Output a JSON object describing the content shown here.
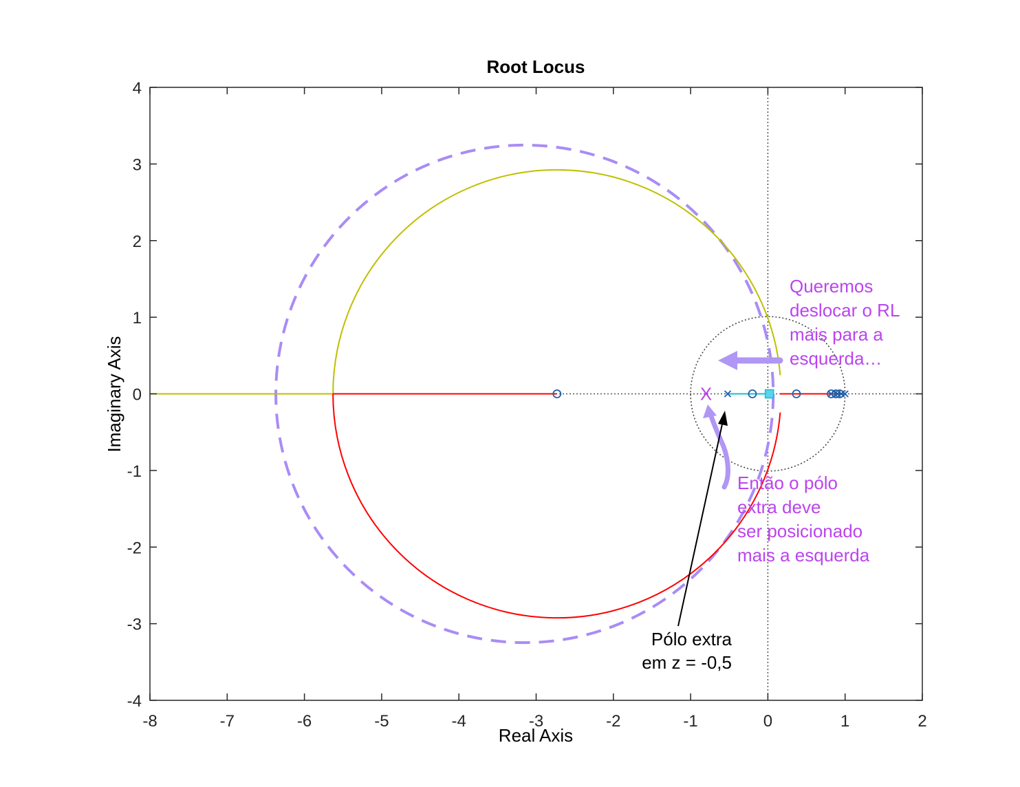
{
  "chart_data": {
    "type": "line",
    "title": "Root Locus",
    "xlabel": "Real Axis",
    "ylabel": "Imaginary Axis",
    "xlim": [
      -8,
      2
    ],
    "ylim": [
      -4,
      4
    ],
    "xticks": [
      "-8",
      "-7",
      "-6",
      "-5",
      "-4",
      "-3",
      "-2",
      "-1",
      "0",
      "1",
      "2"
    ],
    "yticks": [
      "4",
      "3",
      "2",
      "1",
      "0",
      "-1",
      "-2",
      "-3",
      "-4"
    ],
    "grid": false,
    "unit_circle": {
      "center": [
        0,
        0
      ],
      "radius": 1
    },
    "reference_circle": {
      "center": [
        -3.15,
        0
      ],
      "radius": 3.22
    },
    "locus_circle": {
      "center": [
        -2.73,
        0
      ],
      "radius": 2.9
    },
    "series": [
      {
        "color": "#bfbf00",
        "points": [
          [
            -8,
            0
          ],
          [
            -5.66,
            0
          ],
          [
            -5.6,
            1.0
          ],
          [
            -5.3,
            1.55
          ],
          [
            -4.9,
            2.05
          ],
          [
            -4.45,
            2.35
          ],
          [
            -3.9,
            2.68
          ],
          [
            -3.5,
            2.8
          ],
          [
            -2.73,
            2.9
          ],
          [
            -2.0,
            2.78
          ],
          [
            -1.3,
            2.42
          ],
          [
            -0.7,
            1.9
          ],
          [
            -0.2,
            1.3
          ],
          [
            0.1,
            0.7
          ],
          [
            0.16,
            0
          ]
        ]
      },
      {
        "color": "#ff0000",
        "points": [
          [
            -5.66,
            0
          ],
          [
            -2.73,
            0
          ],
          [
            -5.6,
            -1.0
          ],
          [
            -5.3,
            -1.55
          ],
          [
            -4.9,
            -2.05
          ],
          [
            -4.45,
            -2.35
          ],
          [
            -3.9,
            -2.68
          ],
          [
            -3.5,
            -2.8
          ],
          [
            -2.73,
            -2.9
          ],
          [
            -2.0,
            -2.78
          ],
          [
            -1.3,
            -2.42
          ],
          [
            -0.7,
            -1.9
          ],
          [
            -0.2,
            -1.3
          ],
          [
            0.1,
            -0.7
          ],
          [
            0.16,
            0
          ],
          [
            0.95,
            0
          ]
        ]
      },
      {
        "color": "#17becf",
        "points": [
          [
            -0.52,
            0
          ],
          [
            0.02,
            0
          ]
        ]
      }
    ],
    "poles": [
      -0.52,
      0.82,
      0.9,
      0.95,
      1.0
    ],
    "zeros": [
      -2.73,
      -0.2,
      0.37,
      0.82,
      0.88,
      0.93
    ],
    "extra_pole_marker": {
      "label": "X",
      "x": -0.8,
      "y": 0,
      "color": "#bb44ee"
    },
    "annotations": [
      {
        "lines": [
          "Queremos",
          "deslocar o RL",
          "mais para a",
          "esquerda…"
        ],
        "color": "#bb44ee"
      },
      {
        "lines": [
          "Então o pólo",
          "extra deve",
          "ser posicionado",
          "mais a esquerda"
        ],
        "color": "#bb44ee"
      },
      {
        "lines": [
          "Pólo extra",
          "em z = -0,5"
        ],
        "color": "#000000"
      }
    ],
    "colors": {
      "reference_circle": "#a98cf5",
      "arrow": "#b096f5",
      "axes": "#262626"
    }
  }
}
